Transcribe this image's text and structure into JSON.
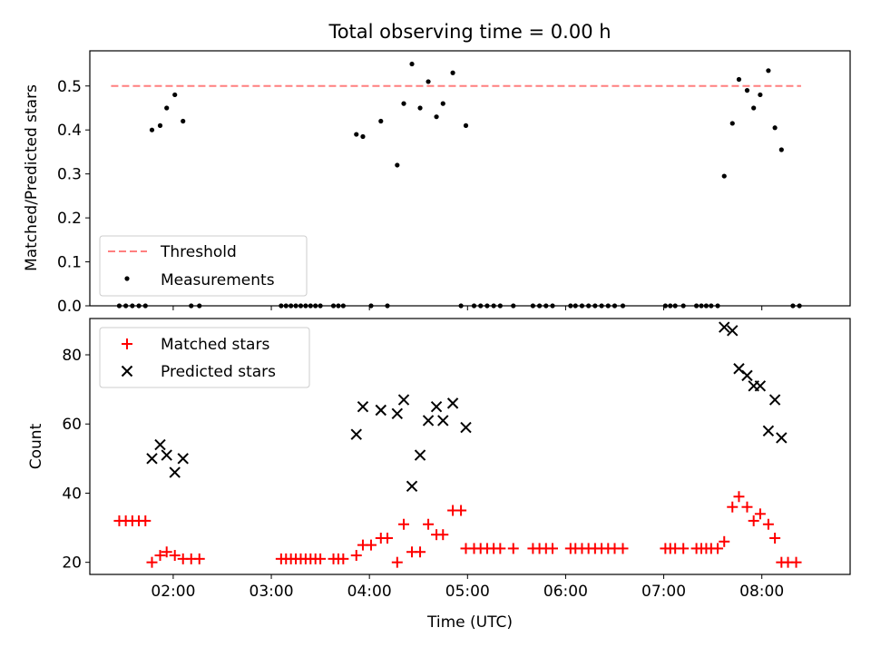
{
  "chart_data": [
    {
      "type": "scatter",
      "title": "Total observing time = 0.00 h",
      "xlabel": "",
      "ylabel": "Matched/Predicted stars",
      "x_unit": "time (UTC)",
      "xlim": [
        "01:09",
        "08:54"
      ],
      "ylim": [
        0,
        0.58
      ],
      "y_ticks": [
        0.0,
        0.1,
        0.2,
        0.3,
        0.4,
        0.5
      ],
      "y_tick_labels": [
        "0.0",
        "0.1",
        "0.2",
        "0.3",
        "0.4",
        "0.5"
      ],
      "threshold": {
        "name": "Threshold",
        "y": 0.5,
        "x_range": [
          "01:22",
          "08:24"
        ],
        "color": "#ff7f7f"
      },
      "legend": {
        "placement": "lower-left",
        "entries": [
          "Threshold",
          "Measurements"
        ]
      },
      "series": [
        {
          "name": "Measurements",
          "color": "#000000",
          "points": [
            [
              "01:27",
              0
            ],
            [
              "01:31",
              0
            ],
            [
              "01:35",
              0
            ],
            [
              "01:39",
              0
            ],
            [
              "01:43",
              0
            ],
            [
              "01:47",
              0.4
            ],
            [
              "01:52",
              0.41
            ],
            [
              "01:56",
              0.45
            ],
            [
              "02:01",
              0.48
            ],
            [
              "02:06",
              0.42
            ],
            [
              "02:11",
              0
            ],
            [
              "02:16",
              0
            ],
            [
              "03:06",
              0
            ],
            [
              "03:09",
              0
            ],
            [
              "03:12",
              0
            ],
            [
              "03:15",
              0
            ],
            [
              "03:18",
              0
            ],
            [
              "03:21",
              0
            ],
            [
              "03:24",
              0
            ],
            [
              "03:27",
              0
            ],
            [
              "03:30",
              0
            ],
            [
              "03:38",
              0
            ],
            [
              "03:41",
              0
            ],
            [
              "03:44",
              0
            ],
            [
              "03:52",
              0.39
            ],
            [
              "03:56",
              0.385
            ],
            [
              "04:01",
              0
            ],
            [
              "04:07",
              0.42
            ],
            [
              "04:11",
              0
            ],
            [
              "04:17",
              0.32
            ],
            [
              "04:21",
              0.46
            ],
            [
              "04:26",
              0.55
            ],
            [
              "04:31",
              0.45
            ],
            [
              "04:36",
              0.51
            ],
            [
              "04:41",
              0.43
            ],
            [
              "04:45",
              0.46
            ],
            [
              "04:51",
              0.53
            ],
            [
              "04:56",
              0
            ],
            [
              "04:59",
              0.41
            ],
            [
              "05:04",
              0
            ],
            [
              "05:08",
              0
            ],
            [
              "05:12",
              0
            ],
            [
              "05:16",
              0
            ],
            [
              "05:20",
              0
            ],
            [
              "05:28",
              0
            ],
            [
              "05:40",
              0
            ],
            [
              "05:44",
              0
            ],
            [
              "05:48",
              0
            ],
            [
              "05:52",
              0
            ],
            [
              "06:03",
              0
            ],
            [
              "06:06",
              0
            ],
            [
              "06:10",
              0
            ],
            [
              "06:14",
              0
            ],
            [
              "06:18",
              0
            ],
            [
              "06:22",
              0
            ],
            [
              "06:26",
              0
            ],
            [
              "06:30",
              0
            ],
            [
              "06:35",
              0
            ],
            [
              "07:01",
              0
            ],
            [
              "07:04",
              0
            ],
            [
              "07:07",
              0
            ],
            [
              "07:12",
              0
            ],
            [
              "07:20",
              0
            ],
            [
              "07:23",
              0
            ],
            [
              "07:26",
              0
            ],
            [
              "07:29",
              0
            ],
            [
              "07:33",
              0
            ],
            [
              "07:37",
              0.295
            ],
            [
              "07:42",
              0.415
            ],
            [
              "07:46",
              0.515
            ],
            [
              "07:51",
              0.49
            ],
            [
              "07:55",
              0.45
            ],
            [
              "07:59",
              0.48
            ],
            [
              "08:04",
              0.535
            ],
            [
              "08:08",
              0.405
            ],
            [
              "08:12",
              0.355
            ],
            [
              "08:19",
              0
            ],
            [
              "08:23",
              0
            ]
          ]
        }
      ]
    },
    {
      "type": "scatter",
      "title": "",
      "xlabel": "Time (UTC)",
      "ylabel": "Count",
      "xlim": [
        "01:09",
        "08:54"
      ],
      "ylim": [
        16.5,
        90.5
      ],
      "y_ticks": [
        20,
        40,
        60,
        80
      ],
      "y_tick_labels": [
        "20",
        "40",
        "60",
        "80"
      ],
      "x_ticks": [
        "02:00",
        "03:00",
        "04:00",
        "05:00",
        "06:00",
        "07:00",
        "08:00"
      ],
      "x_tick_labels": [
        "02:00",
        "03:00",
        "04:00",
        "05:00",
        "06:00",
        "07:00",
        "08:00"
      ],
      "legend": {
        "placement": "upper-left",
        "entries": [
          "Matched stars",
          "Predicted stars"
        ]
      },
      "series": [
        {
          "name": "Matched stars",
          "color": "#ff0000",
          "marker": "+",
          "points": [
            [
              "01:27",
              32
            ],
            [
              "01:31",
              32
            ],
            [
              "01:35",
              32
            ],
            [
              "01:39",
              32
            ],
            [
              "01:43",
              32
            ],
            [
              "01:47",
              20
            ],
            [
              "01:52",
              22
            ],
            [
              "01:56",
              23
            ],
            [
              "02:01",
              22
            ],
            [
              "02:06",
              21
            ],
            [
              "02:11",
              21
            ],
            [
              "02:16",
              21
            ],
            [
              "03:06",
              21
            ],
            [
              "03:09",
              21
            ],
            [
              "03:12",
              21
            ],
            [
              "03:15",
              21
            ],
            [
              "03:18",
              21
            ],
            [
              "03:21",
              21
            ],
            [
              "03:24",
              21
            ],
            [
              "03:27",
              21
            ],
            [
              "03:30",
              21
            ],
            [
              "03:38",
              21
            ],
            [
              "03:41",
              21
            ],
            [
              "03:44",
              21
            ],
            [
              "03:52",
              22
            ],
            [
              "03:56",
              25
            ],
            [
              "04:01",
              25
            ],
            [
              "04:07",
              27
            ],
            [
              "04:11",
              27
            ],
            [
              "04:17",
              20
            ],
            [
              "04:21",
              31
            ],
            [
              "04:26",
              23
            ],
            [
              "04:31",
              23
            ],
            [
              "04:36",
              31
            ],
            [
              "04:41",
              28
            ],
            [
              "04:45",
              28
            ],
            [
              "04:51",
              35
            ],
            [
              "04:56",
              35
            ],
            [
              "04:59",
              24
            ],
            [
              "05:04",
              24
            ],
            [
              "05:08",
              24
            ],
            [
              "05:12",
              24
            ],
            [
              "05:16",
              24
            ],
            [
              "05:20",
              24
            ],
            [
              "05:28",
              24
            ],
            [
              "05:40",
              24
            ],
            [
              "05:44",
              24
            ],
            [
              "05:48",
              24
            ],
            [
              "05:52",
              24
            ],
            [
              "06:03",
              24
            ],
            [
              "06:06",
              24
            ],
            [
              "06:10",
              24
            ],
            [
              "06:14",
              24
            ],
            [
              "06:18",
              24
            ],
            [
              "06:22",
              24
            ],
            [
              "06:26",
              24
            ],
            [
              "06:30",
              24
            ],
            [
              "06:35",
              24
            ],
            [
              "07:01",
              24
            ],
            [
              "07:04",
              24
            ],
            [
              "07:07",
              24
            ],
            [
              "07:12",
              24
            ],
            [
              "07:20",
              24
            ],
            [
              "07:23",
              24
            ],
            [
              "07:26",
              24
            ],
            [
              "07:29",
              24
            ],
            [
              "07:33",
              24
            ],
            [
              "07:37",
              26
            ],
            [
              "07:42",
              36
            ],
            [
              "07:46",
              39
            ],
            [
              "07:51",
              36
            ],
            [
              "07:55",
              32
            ],
            [
              "07:59",
              34
            ],
            [
              "08:04",
              31
            ],
            [
              "08:08",
              27
            ],
            [
              "08:12",
              20
            ],
            [
              "08:16",
              20
            ],
            [
              "08:21",
              20
            ]
          ]
        },
        {
          "name": "Predicted stars",
          "color": "#000000",
          "marker": "x",
          "points": [
            [
              "01:47",
              50
            ],
            [
              "01:52",
              54
            ],
            [
              "01:56",
              51
            ],
            [
              "02:01",
              46
            ],
            [
              "02:06",
              50
            ],
            [
              "03:52",
              57
            ],
            [
              "03:56",
              65
            ],
            [
              "04:07",
              64
            ],
            [
              "04:17",
              63
            ],
            [
              "04:21",
              67
            ],
            [
              "04:26",
              42
            ],
            [
              "04:31",
              51
            ],
            [
              "04:36",
              61
            ],
            [
              "04:41",
              65
            ],
            [
              "04:45",
              61
            ],
            [
              "04:51",
              66
            ],
            [
              "04:59",
              59
            ],
            [
              "07:37",
              88
            ],
            [
              "07:42",
              87
            ],
            [
              "07:46",
              76
            ],
            [
              "07:51",
              74
            ],
            [
              "07:55",
              71
            ],
            [
              "07:59",
              71
            ],
            [
              "08:04",
              58
            ],
            [
              "08:08",
              67
            ],
            [
              "08:12",
              56
            ]
          ]
        }
      ]
    }
  ]
}
